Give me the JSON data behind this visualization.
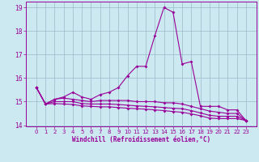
{
  "xlabel": "Windchill (Refroidissement éolien,°C)",
  "background_color": "#cce8f0",
  "line_color": "#990099",
  "grid_color": "#99bbcc",
  "x_values": [
    0,
    1,
    2,
    3,
    4,
    5,
    6,
    7,
    8,
    9,
    10,
    11,
    12,
    13,
    14,
    15,
    16,
    17,
    18,
    19,
    20,
    21,
    22,
    23
  ],
  "series1": [
    15.6,
    14.9,
    15.1,
    15.2,
    15.4,
    15.2,
    15.1,
    15.3,
    15.4,
    15.6,
    16.1,
    16.5,
    16.5,
    17.8,
    19.0,
    18.8,
    16.6,
    16.7,
    14.8,
    14.8,
    14.8,
    14.65,
    14.65,
    14.2
  ],
  "series2": [
    15.6,
    14.9,
    15.1,
    15.15,
    15.1,
    15.05,
    15.0,
    15.05,
    15.05,
    15.05,
    15.05,
    15.0,
    15.0,
    15.0,
    14.95,
    14.95,
    14.9,
    14.8,
    14.7,
    14.6,
    14.55,
    14.5,
    14.5,
    14.2
  ],
  "series3": [
    15.6,
    14.9,
    15.0,
    15.0,
    15.0,
    14.92,
    14.9,
    14.9,
    14.9,
    14.88,
    14.85,
    14.82,
    14.8,
    14.78,
    14.75,
    14.72,
    14.7,
    14.62,
    14.52,
    14.42,
    14.38,
    14.38,
    14.38,
    14.2
  ],
  "series4": [
    15.6,
    14.9,
    14.92,
    14.9,
    14.88,
    14.82,
    14.8,
    14.78,
    14.78,
    14.75,
    14.72,
    14.7,
    14.68,
    14.65,
    14.62,
    14.58,
    14.55,
    14.48,
    14.4,
    14.3,
    14.28,
    14.28,
    14.28,
    14.2
  ],
  "ylim": [
    13.95,
    19.25
  ],
  "yticks": [
    14,
    15,
    16,
    17,
    18,
    19
  ],
  "xticks": [
    0,
    1,
    2,
    3,
    4,
    5,
    6,
    7,
    8,
    9,
    10,
    11,
    12,
    13,
    14,
    15,
    16,
    17,
    18,
    19,
    20,
    21,
    22,
    23
  ],
  "xlabel_fontsize": 5.5,
  "ytick_fontsize": 5.5,
  "xtick_fontsize": 5.0
}
